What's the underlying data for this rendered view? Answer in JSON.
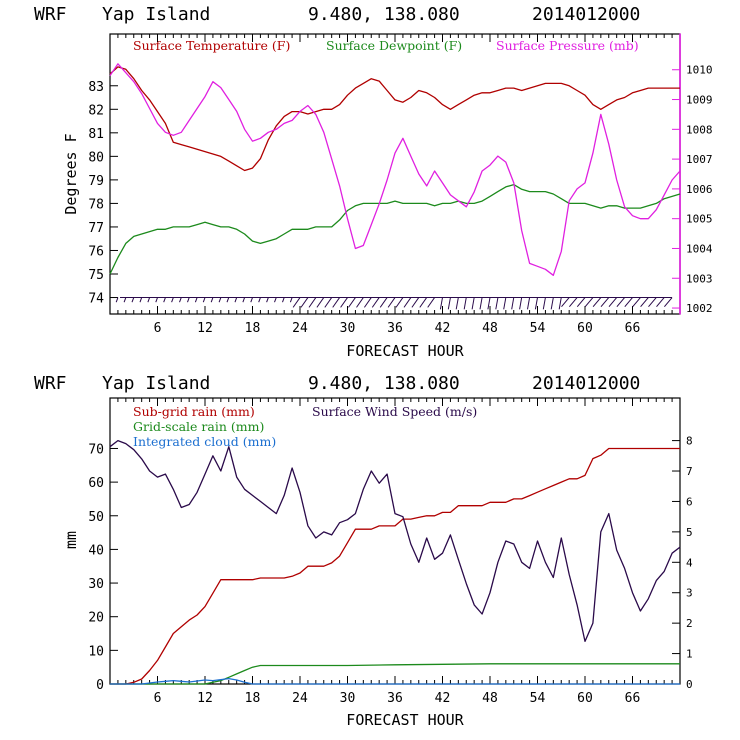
{
  "colors": {
    "temperature": "#b00000",
    "dewpoint": "#1c8a1c",
    "pressure": "#e020e0",
    "subgrid_rain": "#b00000",
    "gridscale_rain": "#1c8a1c",
    "cloud": "#1c6fd0",
    "wind": "#2a0a4a",
    "pressure_axis": "#e020e0"
  },
  "chart_data": [
    {
      "type": "line",
      "header": {
        "model": "WRF",
        "location": "Yap Island",
        "coords": "9.480, 138.080",
        "init": "2014012000"
      },
      "xlabel": "FORECAST HOUR",
      "ylabel": "Degrees F",
      "xlim": [
        0,
        72
      ],
      "ylim": [
        73.3,
        85.2
      ],
      "y2lim": [
        1001.8,
        1011.2
      ],
      "xticks": [
        6,
        12,
        18,
        24,
        30,
        36,
        42,
        48,
        54,
        60,
        66
      ],
      "xtick_labels": [
        "6",
        "12",
        "18",
        "24",
        "30",
        "36",
        "42",
        "48",
        "54",
        "60",
        "66"
      ],
      "yticks": [
        74,
        75,
        76,
        77,
        78,
        79,
        80,
        81,
        82,
        83
      ],
      "ytick_labels": [
        "74",
        "75",
        "76",
        "77",
        "78",
        "79",
        "80",
        "81",
        "82",
        "83"
      ],
      "y2ticks": [
        1002,
        1003,
        1004,
        1005,
        1006,
        1007,
        1008,
        1009,
        1010
      ],
      "y2tick_labels": [
        "1002",
        "1003",
        "1004",
        "1005",
        "1006",
        "1007",
        "1008",
        "1009",
        "1010"
      ],
      "series": [
        {
          "name": "Surface Temperature (F)",
          "axis": "left",
          "x": [
            0,
            1,
            2,
            3,
            4,
            5,
            6,
            7,
            8,
            9,
            10,
            11,
            12,
            13,
            14,
            15,
            16,
            17,
            18,
            19,
            20,
            21,
            22,
            23,
            24,
            25,
            26,
            27,
            28,
            29,
            30,
            31,
            32,
            33,
            34,
            35,
            36,
            37,
            38,
            39,
            40,
            41,
            42,
            43,
            44,
            45,
            46,
            47,
            48,
            49,
            50,
            51,
            52,
            53,
            54,
            55,
            56,
            57,
            58,
            59,
            60,
            61,
            62,
            63,
            64,
            65,
            66,
            67,
            68,
            69,
            70,
            71,
            72
          ],
          "y": [
            83.5,
            83.8,
            83.7,
            83.3,
            82.8,
            82.4,
            81.9,
            81.4,
            80.6,
            80.5,
            80.4,
            80.3,
            80.2,
            80.1,
            80.0,
            79.8,
            79.6,
            79.4,
            79.5,
            79.9,
            80.7,
            81.3,
            81.7,
            81.9,
            81.9,
            81.8,
            81.9,
            82.0,
            82.0,
            82.2,
            82.6,
            82.9,
            83.1,
            83.3,
            83.2,
            82.8,
            82.4,
            82.3,
            82.5,
            82.8,
            82.7,
            82.5,
            82.2,
            82.0,
            82.2,
            82.4,
            82.6,
            82.7,
            82.7,
            82.8,
            82.9,
            82.9,
            82.8,
            82.9,
            83.0,
            83.1,
            83.1,
            83.1,
            83.0,
            82.8,
            82.6,
            82.2,
            82.0,
            82.2,
            82.4,
            82.5,
            82.7,
            82.8,
            82.9,
            82.9,
            82.9,
            82.9,
            82.9
          ]
        },
        {
          "name": "Surface Dewpoint (F)",
          "axis": "left",
          "x": [
            0,
            1,
            2,
            3,
            4,
            5,
            6,
            7,
            8,
            9,
            10,
            11,
            12,
            13,
            14,
            15,
            16,
            17,
            18,
            19,
            20,
            21,
            22,
            23,
            24,
            25,
            26,
            27,
            28,
            29,
            30,
            31,
            32,
            33,
            34,
            35,
            36,
            37,
            38,
            39,
            40,
            41,
            42,
            43,
            44,
            45,
            46,
            47,
            48,
            49,
            50,
            51,
            52,
            53,
            54,
            55,
            56,
            57,
            58,
            59,
            60,
            61,
            62,
            63,
            64,
            65,
            66,
            67,
            68,
            69,
            70,
            71,
            72
          ],
          "y": [
            75.0,
            75.7,
            76.3,
            76.6,
            76.7,
            76.8,
            76.9,
            76.9,
            77.0,
            77.0,
            77.0,
            77.1,
            77.2,
            77.1,
            77.0,
            77.0,
            76.9,
            76.7,
            76.4,
            76.3,
            76.4,
            76.5,
            76.7,
            76.9,
            76.9,
            76.9,
            77.0,
            77.0,
            77.0,
            77.3,
            77.7,
            77.9,
            78.0,
            78.0,
            78.0,
            78.0,
            78.1,
            78.0,
            78.0,
            78.0,
            78.0,
            77.9,
            78.0,
            78.0,
            78.1,
            78.0,
            78.0,
            78.1,
            78.3,
            78.5,
            78.7,
            78.8,
            78.6,
            78.5,
            78.5,
            78.5,
            78.4,
            78.2,
            78.0,
            78.0,
            78.0,
            77.9,
            77.8,
            77.9,
            77.9,
            77.8,
            77.8,
            77.8,
            77.9,
            78.0,
            78.2,
            78.3,
            78.4
          ]
        },
        {
          "name": "Surface Pressure (mb)",
          "axis": "right",
          "x": [
            0,
            1,
            2,
            3,
            4,
            5,
            6,
            7,
            8,
            9,
            10,
            11,
            12,
            13,
            14,
            15,
            16,
            17,
            18,
            19,
            20,
            21,
            22,
            23,
            24,
            25,
            26,
            27,
            28,
            29,
            30,
            31,
            32,
            33,
            34,
            35,
            36,
            37,
            38,
            39,
            40,
            41,
            42,
            43,
            44,
            45,
            46,
            47,
            48,
            49,
            50,
            51,
            52,
            53,
            54,
            55,
            56,
            57,
            58,
            59,
            60,
            61,
            62,
            63,
            64,
            65,
            66,
            67,
            68,
            69,
            70,
            71,
            72
          ],
          "y": [
            1009.8,
            1010.2,
            1009.9,
            1009.6,
            1009.2,
            1008.7,
            1008.2,
            1007.9,
            1007.8,
            1007.9,
            1008.3,
            1008.7,
            1009.1,
            1009.6,
            1009.4,
            1009.0,
            1008.6,
            1008.0,
            1007.6,
            1007.7,
            1007.9,
            1008.0,
            1008.2,
            1008.3,
            1008.6,
            1008.8,
            1008.5,
            1007.9,
            1007.0,
            1006.1,
            1005.0,
            1004.0,
            1004.1,
            1004.8,
            1005.5,
            1006.3,
            1007.2,
            1007.7,
            1007.1,
            1006.5,
            1006.1,
            1006.6,
            1006.2,
            1005.8,
            1005.6,
            1005.4,
            1005.9,
            1006.6,
            1006.8,
            1007.1,
            1006.9,
            1006.2,
            1004.6,
            1003.5,
            1003.4,
            1003.3,
            1003.1,
            1003.9,
            1005.6,
            1006.0,
            1006.2,
            1007.2,
            1008.5,
            1007.5,
            1006.3,
            1005.4,
            1005.1,
            1005.0,
            1005.0,
            1005.3,
            1005.8,
            1006.3,
            1006.6
          ]
        }
      ],
      "wind_barbs_at_level": 74
    },
    {
      "type": "line",
      "header": {
        "model": "WRF",
        "location": "Yap Island",
        "coords": "9.480, 138.080",
        "init": "2014012000"
      },
      "xlabel": "FORECAST HOUR",
      "ylabel": "mm",
      "xlim": [
        0,
        72
      ],
      "ylim": [
        0,
        85
      ],
      "y2lim": [
        0,
        9.4
      ],
      "xticks": [
        6,
        12,
        18,
        24,
        30,
        36,
        42,
        48,
        54,
        60,
        66
      ],
      "xtick_labels": [
        "6",
        "12",
        "18",
        "24",
        "30",
        "36",
        "42",
        "48",
        "54",
        "60",
        "66"
      ],
      "yticks": [
        0,
        10,
        20,
        30,
        40,
        50,
        60,
        70
      ],
      "ytick_labels": [
        "0",
        "10",
        "20",
        "30",
        "40",
        "50",
        "60",
        "70"
      ],
      "y2ticks": [
        0,
        1,
        2,
        3,
        4,
        5,
        6,
        7,
        8
      ],
      "y2tick_labels": [
        "0",
        "1",
        "2",
        "3",
        "4",
        "5",
        "6",
        "7",
        "8"
      ],
      "series": [
        {
          "name": "Sub-grid rain (mm)",
          "axis": "left",
          "x": [
            0,
            2,
            3,
            4,
            5,
            6,
            7,
            8,
            9,
            10,
            11,
            12,
            13,
            14,
            15,
            16,
            17,
            18,
            19,
            20,
            21,
            22,
            23,
            24,
            25,
            26,
            27,
            28,
            29,
            30,
            31,
            32,
            33,
            34,
            35,
            36,
            37,
            38,
            39,
            40,
            41,
            42,
            43,
            44,
            45,
            46,
            47,
            48,
            49,
            50,
            51,
            52,
            53,
            54,
            55,
            56,
            57,
            58,
            59,
            60,
            61,
            62,
            63,
            64,
            65,
            66,
            67,
            68,
            69,
            70,
            71,
            72
          ],
          "y": [
            0,
            0,
            0.5,
            1.5,
            4,
            7,
            11,
            15,
            17,
            19,
            20.5,
            23,
            27,
            31,
            31,
            31,
            31,
            31,
            31.5,
            31.5,
            31.5,
            31.5,
            32,
            33,
            35,
            35,
            35,
            36,
            38,
            42,
            46,
            46,
            46,
            47,
            47,
            47,
            49,
            49,
            49.5,
            50,
            50,
            51,
            51,
            53,
            53,
            53,
            53,
            54,
            54,
            54,
            55,
            55,
            56,
            57,
            58,
            59,
            60,
            61,
            61,
            62,
            67,
            68,
            70,
            70,
            70,
            70,
            70,
            70,
            70,
            70,
            70,
            70
          ]
        },
        {
          "name": "Grid-scale rain (mm)",
          "axis": "left",
          "x": [
            0,
            6,
            12,
            13,
            14,
            15,
            16,
            17,
            18,
            19,
            24,
            30,
            36,
            48,
            60,
            72
          ],
          "y": [
            0,
            0,
            0,
            0.5,
            1,
            2,
            3,
            4,
            5,
            5.5,
            5.5,
            5.5,
            5.7,
            6,
            6,
            6
          ]
        },
        {
          "name": "Integrated cloud (mm)",
          "axis": "left",
          "x": [
            0,
            4,
            5,
            6,
            7,
            8,
            9,
            10,
            11,
            12,
            13,
            14,
            15,
            16,
            17,
            18,
            20,
            24,
            30,
            36,
            48,
            60,
            72
          ],
          "y": [
            0,
            0,
            0.3,
            0.6,
            0.8,
            1,
            0.8,
            0.6,
            0.9,
            1.2,
            1.0,
            1.3,
            1.6,
            1.2,
            0.5,
            0,
            0,
            0,
            0,
            0,
            0,
            0,
            0
          ]
        },
        {
          "name": "Surface Wind Speed (m/s)",
          "axis": "right",
          "x": [
            0,
            1,
            2,
            3,
            4,
            5,
            6,
            7,
            8,
            9,
            10,
            11,
            12,
            13,
            14,
            15,
            16,
            17,
            18,
            19,
            20,
            21,
            22,
            23,
            24,
            25,
            26,
            27,
            28,
            29,
            30,
            31,
            32,
            33,
            34,
            35,
            36,
            37,
            38,
            39,
            40,
            41,
            42,
            43,
            44,
            45,
            46,
            47,
            48,
            49,
            50,
            51,
            52,
            53,
            54,
            55,
            56,
            57,
            58,
            59,
            60,
            61,
            62,
            63,
            64,
            65,
            66,
            67,
            68,
            69,
            70,
            71,
            72
          ],
          "y": [
            7.8,
            8.0,
            7.9,
            7.7,
            7.4,
            7.0,
            6.8,
            6.9,
            6.4,
            5.8,
            5.9,
            6.3,
            6.9,
            7.5,
            7.0,
            7.8,
            6.8,
            6.4,
            6.2,
            6.0,
            5.8,
            5.6,
            6.2,
            7.1,
            6.3,
            5.2,
            4.8,
            5.0,
            4.9,
            5.3,
            5.4,
            5.6,
            6.4,
            7.0,
            6.6,
            6.9,
            5.6,
            5.5,
            4.6,
            4.0,
            4.8,
            4.1,
            4.3,
            4.9,
            4.1,
            3.3,
            2.6,
            2.3,
            3.0,
            4.0,
            4.7,
            4.6,
            4.0,
            3.8,
            4.7,
            4.0,
            3.5,
            4.8,
            3.6,
            2.6,
            1.4,
            2.0,
            5.0,
            5.6,
            4.4,
            3.8,
            3.0,
            2.4,
            2.8,
            3.4,
            3.7,
            4.3,
            4.5
          ]
        }
      ]
    }
  ]
}
